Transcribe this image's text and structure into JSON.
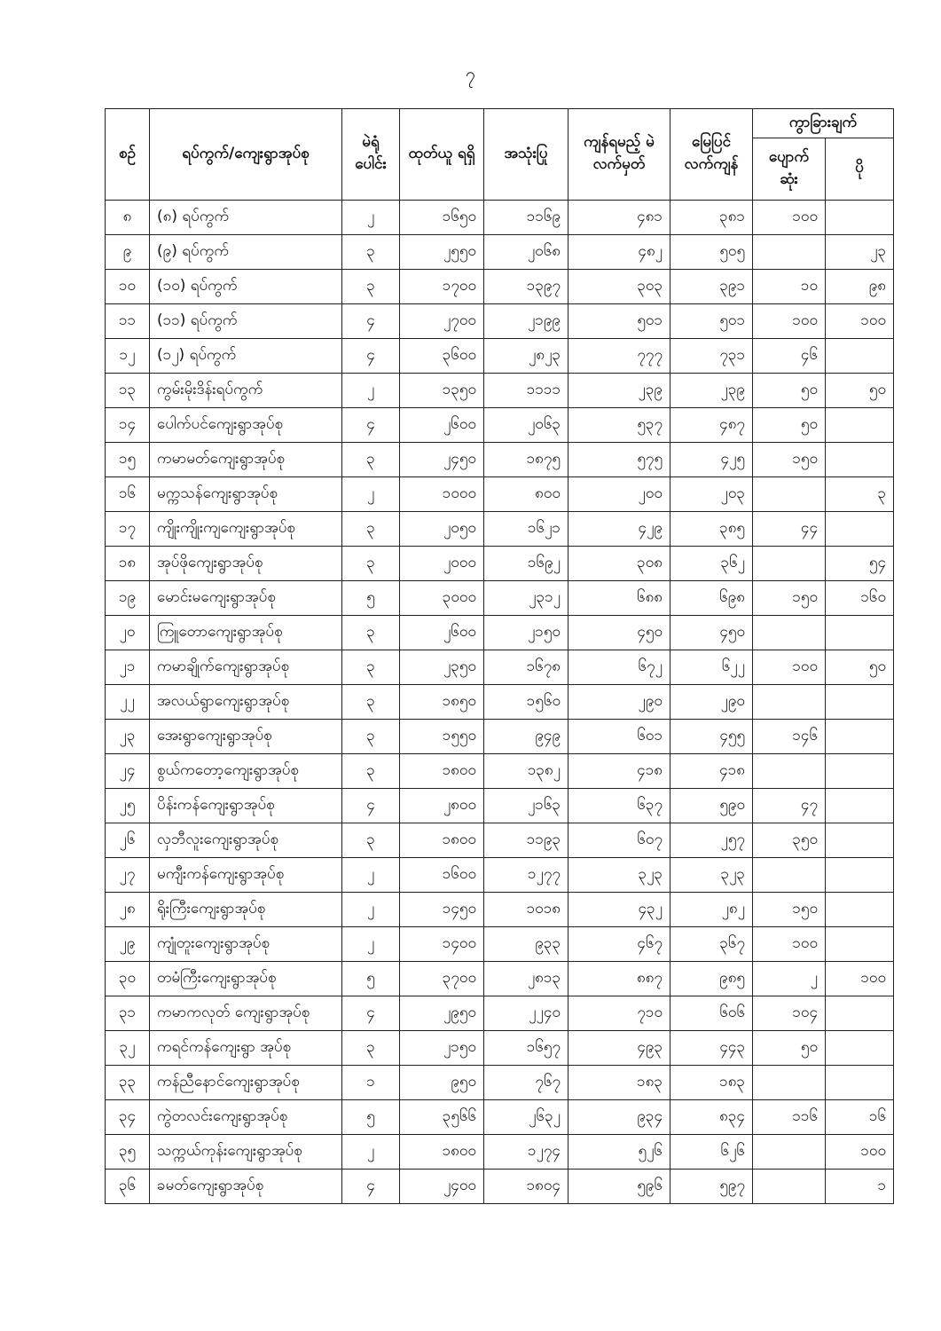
{
  "page_number": "၇",
  "header": {
    "serial": "စဉ်",
    "name": "ရပ်ကွက်/ကျေးရွာအုပ်စု",
    "stations": "မဲရုံ ပေါင်း",
    "received": "ထုတ်ယူ ရရှိ",
    "used": "အသုံးပြု",
    "remaining": "ကျန်ရမည့် မဲလက်မှတ်",
    "ground_balance": "မြေပြင် လက်ကျန်",
    "difference": "ကွာခြားချက်",
    "lost": "ပျောက် ဆုံး",
    "extra": "ပို"
  },
  "rows": [
    [
      "၈",
      "(၈) ရပ်ကွက်",
      "၂",
      "၁၆၅၀",
      "၁၁၆၉",
      "၄၈၁",
      "၃၈၁",
      "၁၀၀",
      ""
    ],
    [
      "၉",
      "(၉) ရပ်ကွက်",
      "၃",
      "၂၅၅၀",
      "၂၀၆၈",
      "၄၈၂",
      "၅၀၅",
      "",
      "၂၃"
    ],
    [
      "၁၀",
      "(၁၀) ရပ်ကွက်",
      "၃",
      "၁၇၀၀",
      "၁၃၉၇",
      "၃၀၃",
      "၃၉၁",
      "၁၀",
      "၉၈"
    ],
    [
      "၁၁",
      "(၁၁) ရပ်ကွက်",
      "၄",
      "၂၇၀၀",
      "၂၁၉၉",
      "၅၀၁",
      "၅၀၁",
      "၁၀၀",
      "၁၀၀"
    ],
    [
      "၁၂",
      "(၁၂) ရပ်ကွက်",
      "၄",
      "၃၆၀၀",
      "၂၈၂၃",
      "၇၇၇",
      "၇၃၁",
      "၄၆",
      ""
    ],
    [
      "၁၃",
      "ကွမ်းမိုးဒိန်းရပ်ကွက်",
      "၂",
      "၁၃၅၀",
      "၁၁၁၁",
      "၂၃၉",
      "၂၃၉",
      "၅၀",
      "၅၀"
    ],
    [
      "၁၄",
      "ပေါက်ပင်ကျေးရွာအုပ်စု",
      "၄",
      "၂၆၀၀",
      "၂၀၆၃",
      "၅၃၇",
      "၄၈၇",
      "၅၀",
      ""
    ],
    [
      "၁၅",
      "ကမာမတ်ကျေးရွာအုပ်စု",
      "၃",
      "၂၄၅၀",
      "၁၈၇၅",
      "၅၇၅",
      "၄၂၅",
      "၁၅၀",
      ""
    ],
    [
      "၁၆",
      "မက္ကသန်ကျေးရွာအုပ်စု",
      "၂",
      "၁၀၀၀",
      "၈၀၀",
      "၂၀၀",
      "၂၀၃",
      "",
      "၃"
    ],
    [
      "၁၇",
      "ကျိုးကျိုးကျကျေးရွာအုပ်စု",
      "၃",
      "၂၀၅၀",
      "၁၆၂၁",
      "၄၂၉",
      "၃၈၅",
      "၄၄",
      ""
    ],
    [
      "၁၈",
      "အုပ်ဖိုကျေးရွာအုပ်စု",
      "၃",
      "၂၀၀၀",
      "၁၆၉၂",
      "၃၀၈",
      "၃၆၂",
      "",
      "၅၄"
    ],
    [
      "၁၉",
      "မောင်းမကျေးရွာအုပ်စု",
      "၅",
      "၃၀၀၀",
      "၂၃၁၂",
      "၆၈၈",
      "၆၉၈",
      "၁၅၀",
      "၁၆၀"
    ],
    [
      "၂၀",
      "ကြူတောကျေးရွာအုပ်စု",
      "၃",
      "၂၆၀၀",
      "၂၁၅၀",
      "၄၅၀",
      "၄၅၀",
      "",
      ""
    ],
    [
      "၂၁",
      "ကမာချိုက်ကျေးရွာအုပ်စု",
      "၃",
      "၂၃၅၀",
      "၁၆၇၈",
      "၆၇၂",
      "၆၂၂",
      "၁၀၀",
      "၅၀"
    ],
    [
      "၂၂",
      "အလယ်ရွာကျေးရွာအုပ်စု",
      "၃",
      "၁၈၅၀",
      "၁၅၆၀",
      "၂၉၀",
      "၂၉၀",
      "",
      ""
    ],
    [
      "၂၃",
      "အေးရွာကျေးရွာအုပ်စု",
      "၃",
      "၁၅၅၀",
      "၉၄၉",
      "၆၀၁",
      "၄၅၅",
      "၁၄၆",
      ""
    ],
    [
      "၂၄",
      "စွယ်ကတော့ကျေးရွာအုပ်စု",
      "၃",
      "၁၈၀၀",
      "၁၃၈၂",
      "၄၁၈",
      "၄၁၈",
      "",
      ""
    ],
    [
      "၂၅",
      "ပိန်းကန်ကျေးရွာအုပ်စု",
      "၄",
      "၂၈၀၀",
      "၂၁၆၃",
      "၆၃၇",
      "၅၉၀",
      "၄၇",
      ""
    ],
    [
      "၂၆",
      "လှဘီလူးကျေးရွာအုပ်စု",
      "၃",
      "၁၈၀၀",
      "၁၁၉၃",
      "၆၀၇",
      "၂၅၇",
      "၃၅၀",
      ""
    ],
    [
      "၂၇",
      "မကျီးကန်ကျေးရွာအုပ်စု",
      "၂",
      "၁၆၀၀",
      "၁၂၇၇",
      "၃၂၃",
      "၃၂၃",
      "",
      ""
    ],
    [
      "၂၈",
      "ရိုးကြီးကျေးရွာအုပ်စု",
      "၂",
      "၁၄၅၀",
      "၁၀၁၈",
      "၄၃၂",
      "၂၈၂",
      "၁၅၀",
      ""
    ],
    [
      "၂၉",
      "ကျုံတူးကျေးရွာအုပ်စု",
      "၂",
      "၁၄၀၀",
      "၉၃၃",
      "၄၆၇",
      "၃၆၇",
      "၁၀၀",
      ""
    ],
    [
      "၃၀",
      "တမံကြီးကျေးရွာအုပ်စု",
      "၅",
      "၃၇၀၀",
      "၂၈၁၃",
      "၈၈၇",
      "၉၈၅",
      "၂",
      "၁၀၀"
    ],
    [
      "၃၁",
      "ကမာကလုတ် ကျေးရွာအုပ်စု",
      "၄",
      "၂၉၅၀",
      "၂၂၄၀",
      "၇၁၀",
      "၆၀၆",
      "၁၀၄",
      ""
    ],
    [
      "၃၂",
      "ကရင်ကန်ကျေးရွာ အုပ်စု",
      "၃",
      "၂၁၅၀",
      "၁၆၅၇",
      "၄၉၃",
      "၄၄၃",
      "၅၀",
      ""
    ],
    [
      "၃၃",
      "ကန်ညီနောင်ကျေးရွာအုပ်စု",
      "၁",
      "၉၅၀",
      "၇၆၇",
      "၁၈၃",
      "၁၈၃",
      "",
      ""
    ],
    [
      "၃၄",
      "ကွဲတလင်းကျေးရွာအုပ်စု",
      "၅",
      "၃၅၆၆",
      "၂၆၃၂",
      "၉၃၄",
      "၈၃၄",
      "၁၁၆",
      "၁၆"
    ],
    [
      "၃၅",
      "သက္ကယ်ကုန်းကျေးရွာအုပ်စု",
      "၂",
      "၁၈၀၀",
      "၁၂၇၄",
      "၅၂၆",
      "၆၂၆",
      "",
      "၁၀၀"
    ],
    [
      "၃၆",
      "ခမတ်ကျေးရွာအုပ်စု",
      "၄",
      "၂၄၀၀",
      "၁၈၀၄",
      "၅၉၆",
      "၅၉၇",
      "",
      "၁"
    ]
  ]
}
